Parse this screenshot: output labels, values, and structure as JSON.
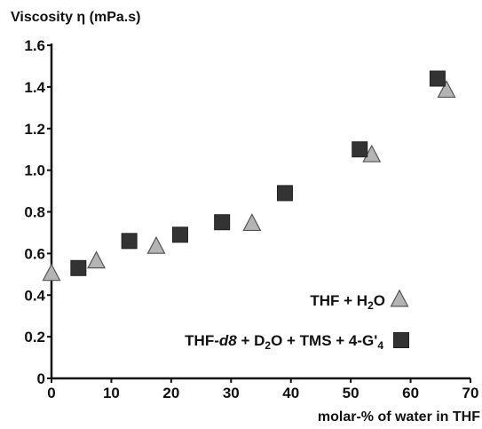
{
  "chart_data": {
    "type": "scatter",
    "ylabel": "Viscosity η (mPa.s)",
    "xlabel": "molar-% of water in THF",
    "xlim": [
      0,
      70
    ],
    "ylim": [
      0,
      1.6
    ],
    "x_ticks": [
      "0",
      "10",
      "20",
      "30",
      "40",
      "50",
      "60",
      "70"
    ],
    "y_ticks": [
      "0",
      "0.2",
      "0.4",
      "0.6",
      "0.8",
      "1.0",
      "1.2",
      "1.4",
      "1.6"
    ],
    "grid": false,
    "legend_position": "bottom-right",
    "series": [
      {
        "name": "THF + H₂O",
        "legend_parts": [
          {
            "text": "THF + H",
            "sub": false,
            "italic": false
          },
          {
            "text": "2",
            "sub": true,
            "italic": false
          },
          {
            "text": "O",
            "sub": false,
            "italic": false
          }
        ],
        "marker": "triangle",
        "color": "#b4b4b4",
        "points": [
          {
            "x": 0,
            "y": 0.5
          },
          {
            "x": 7.5,
            "y": 0.56
          },
          {
            "x": 17.5,
            "y": 0.63
          },
          {
            "x": 33.5,
            "y": 0.74
          },
          {
            "x": 53.5,
            "y": 1.07
          },
          {
            "x": 66,
            "y": 1.38
          }
        ]
      },
      {
        "name": "THF-d8 + D₂O + TMS + 4-G'₄",
        "legend_parts": [
          {
            "text": "THF-",
            "sub": false,
            "italic": false
          },
          {
            "text": "d8",
            "sub": false,
            "italic": true
          },
          {
            "text": " + D",
            "sub": false,
            "italic": false
          },
          {
            "text": "2",
            "sub": true,
            "italic": false
          },
          {
            "text": "O + TMS + 4-G'",
            "sub": false,
            "italic": false
          },
          {
            "text": "4",
            "sub": true,
            "italic": false
          }
        ],
        "marker": "square",
        "color": "#333333",
        "points": [
          {
            "x": 4.5,
            "y": 0.53
          },
          {
            "x": 13,
            "y": 0.66
          },
          {
            "x": 21.5,
            "y": 0.69
          },
          {
            "x": 28.5,
            "y": 0.75
          },
          {
            "x": 39,
            "y": 0.89
          },
          {
            "x": 51.5,
            "y": 1.1
          },
          {
            "x": 64.5,
            "y": 1.44
          }
        ]
      }
    ]
  }
}
